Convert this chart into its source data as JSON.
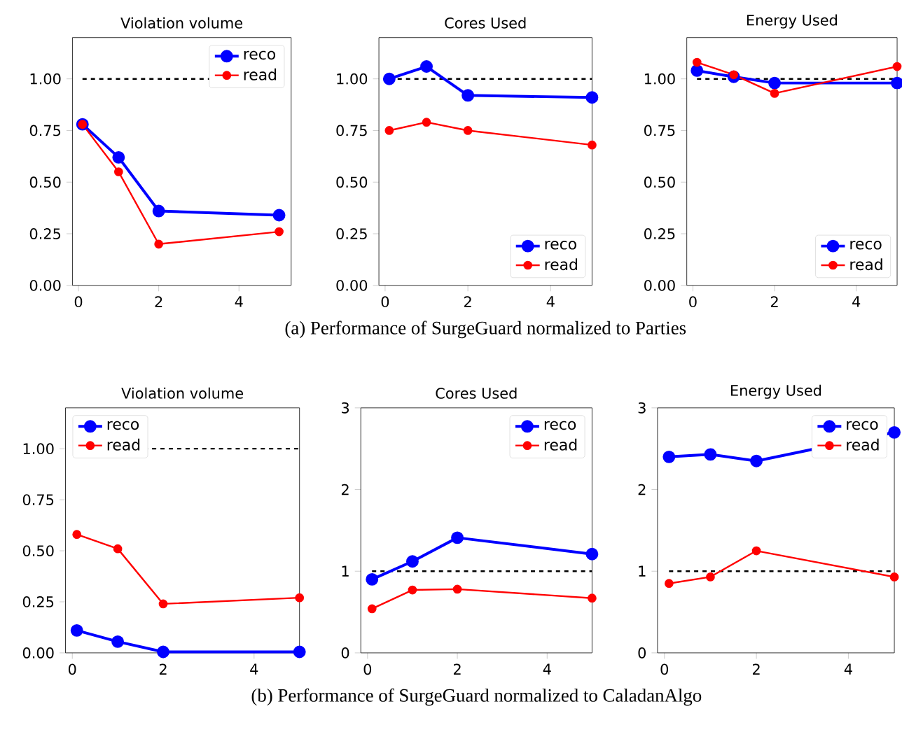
{
  "chart_data": [
    {
      "type": "line",
      "title": "Violation volume",
      "x": [
        0.1,
        1,
        2,
        5
      ],
      "xlim": [
        -0.15,
        5.3
      ],
      "xticks": [
        0,
        2,
        4
      ],
      "ylim": [
        0,
        1.2
      ],
      "yticks": [
        {
          "value": 0,
          "label": "0.00"
        },
        0.25,
        {
          "value": 0.5,
          "label": "0.50"
        },
        0.75,
        {
          "value": 1,
          "label": "1.00"
        }
      ],
      "marker": "circle",
      "line_style": "solid",
      "legend": "top right",
      "series": [
        {
          "name": "reco",
          "color": "#0000ff",
          "values": [
            0.78,
            0.62,
            0.36,
            0.34
          ]
        },
        {
          "name": "read",
          "color": "#ff0000",
          "values": [
            0.78,
            0.55,
            0.2,
            0.26
          ]
        }
      ],
      "ref_lines": [
        {
          "axis": "y",
          "value": 1,
          "color": "#000000",
          "line_style": "dashed"
        }
      ]
    },
    {
      "type": "line",
      "title": "Cores Used",
      "x": [
        0.1,
        1,
        2,
        5
      ],
      "xlim": [
        -0.15,
        5.0
      ],
      "xticks": [
        0,
        2,
        4
      ],
      "ylim": [
        0,
        1.2
      ],
      "yticks": [
        {
          "value": 0,
          "label": "0.00"
        },
        0.25,
        {
          "value": 0.5,
          "label": "0.50"
        },
        0.75,
        {
          "value": 1,
          "label": "1.00"
        }
      ],
      "marker": "circle",
      "line_style": "solid",
      "legend": "bottom right",
      "series": [
        {
          "name": "reco",
          "color": "#0000ff",
          "values": [
            1.0,
            1.06,
            0.92,
            0.91
          ]
        },
        {
          "name": "read",
          "color": "#ff0000",
          "values": [
            0.75,
            0.79,
            0.75,
            0.68
          ]
        }
      ],
      "ref_lines": [
        {
          "axis": "y",
          "value": 1,
          "color": "#000000",
          "line_style": "dashed"
        }
      ],
      "annotations": [
        "(a) Performance of SurgeGuard normalized to Parties"
      ]
    },
    {
      "type": "line",
      "title": "Energy Used",
      "x": [
        0.1,
        1,
        2,
        5
      ],
      "xlim": [
        -0.15,
        5.0
      ],
      "xticks": [
        0,
        2,
        4
      ],
      "ylim": [
        0,
        1.2
      ],
      "yticks": [
        {
          "value": 0,
          "label": "0.00"
        },
        0.25,
        {
          "value": 0.5,
          "label": "0.50"
        },
        0.75,
        {
          "value": 1,
          "label": "1.00"
        }
      ],
      "marker": "circle",
      "line_style": "solid",
      "legend": "bottom right",
      "series": [
        {
          "name": "reco",
          "color": "#0000ff",
          "values": [
            1.04,
            1.01,
            0.98,
            0.98
          ]
        },
        {
          "name": "read",
          "color": "#ff0000",
          "values": [
            1.08,
            1.02,
            0.93,
            1.06
          ]
        }
      ],
      "ref_lines": [
        {
          "axis": "y",
          "value": 1,
          "color": "#000000",
          "line_style": "dashed"
        }
      ]
    },
    {
      "type": "line",
      "title": "Violation volume",
      "x": [
        0.1,
        1,
        2,
        5
      ],
      "xlim": [
        -0.15,
        5.0
      ],
      "xticks": [
        0,
        2,
        4
      ],
      "ylim": [
        0,
        1.2
      ],
      "yticks": [
        {
          "value": 0,
          "label": "0.00"
        },
        0.25,
        {
          "value": 0.5,
          "label": "0.50"
        },
        0.75,
        {
          "value": 1,
          "label": "1.00"
        }
      ],
      "marker": "circle",
      "line_style": "solid",
      "legend": "top left",
      "series": [
        {
          "name": "reco",
          "color": "#0000ff",
          "values": [
            0.11,
            0.055,
            0.005,
            0.005
          ]
        },
        {
          "name": "read",
          "color": "#ff0000",
          "values": [
            0.58,
            0.51,
            0.24,
            0.27
          ]
        }
      ],
      "ref_lines": [
        {
          "axis": "y",
          "value": 1,
          "color": "#000000",
          "line_style": "dashed"
        }
      ]
    },
    {
      "type": "line",
      "title": "Cores Used",
      "x": [
        0.1,
        1,
        2,
        5
      ],
      "xlim": [
        -0.15,
        5.0
      ],
      "xticks": [
        0,
        2,
        4
      ],
      "ylim": [
        0,
        3
      ],
      "yticks": [
        0,
        1,
        2,
        3
      ],
      "marker": "circle",
      "line_style": "solid",
      "legend": "top right",
      "series": [
        {
          "name": "reco",
          "color": "#0000ff",
          "values": [
            0.9,
            1.12,
            1.41,
            1.21
          ]
        },
        {
          "name": "read",
          "color": "#ff0000",
          "values": [
            0.54,
            0.77,
            0.78,
            0.67
          ]
        }
      ],
      "ref_lines": [
        {
          "axis": "y",
          "value": 1,
          "color": "#000000",
          "line_style": "dashed"
        }
      ],
      "annotations": [
        "(b) Performance of SurgeGuard normalized to CaladanAlgo"
      ]
    },
    {
      "type": "line",
      "title": "Energy Used",
      "x": [
        0.1,
        1,
        2,
        5
      ],
      "xlim": [
        -0.15,
        5.0
      ],
      "xticks": [
        0,
        2,
        4
      ],
      "ylim": [
        0,
        3
      ],
      "yticks": [
        0,
        1,
        2,
        3
      ],
      "marker": "circle",
      "line_style": "solid",
      "legend": "top right",
      "series": [
        {
          "name": "reco",
          "color": "#0000ff",
          "values": [
            2.4,
            2.43,
            2.35,
            2.7
          ]
        },
        {
          "name": "read",
          "color": "#ff0000",
          "values": [
            0.85,
            0.93,
            1.25,
            0.93
          ]
        }
      ],
      "ref_lines": [
        {
          "axis": "y",
          "value": 1,
          "color": "#000000",
          "line_style": "dashed"
        }
      ]
    }
  ]
}
